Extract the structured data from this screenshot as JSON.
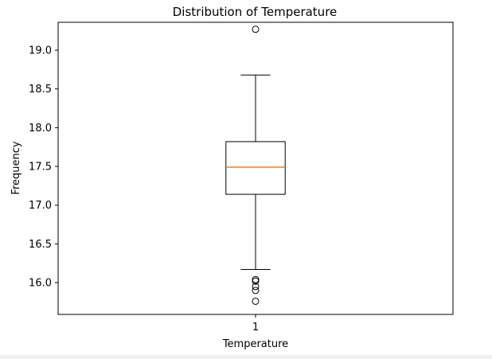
{
  "chart_data": {
    "type": "box",
    "title": "Distribution of Temperature",
    "xlabel": "Temperature",
    "ylabel": "Frequency",
    "categories": [
      "1"
    ],
    "ylim": [
      15.59,
      19.36
    ],
    "yticks": [
      "16.0",
      "16.5",
      "17.0",
      "17.5",
      "18.0",
      "18.5",
      "19.0"
    ],
    "boxes": [
      {
        "label": "1",
        "whisker_low": 16.17,
        "q1": 17.14,
        "median": 17.49,
        "q3": 17.82,
        "whisker_high": 18.68,
        "outliers": [
          19.27,
          16.04,
          16.02,
          15.95,
          15.9,
          15.76
        ]
      }
    ],
    "colors": {
      "median": "#ff7f0e",
      "box": "#000000"
    },
    "grid": false
  }
}
